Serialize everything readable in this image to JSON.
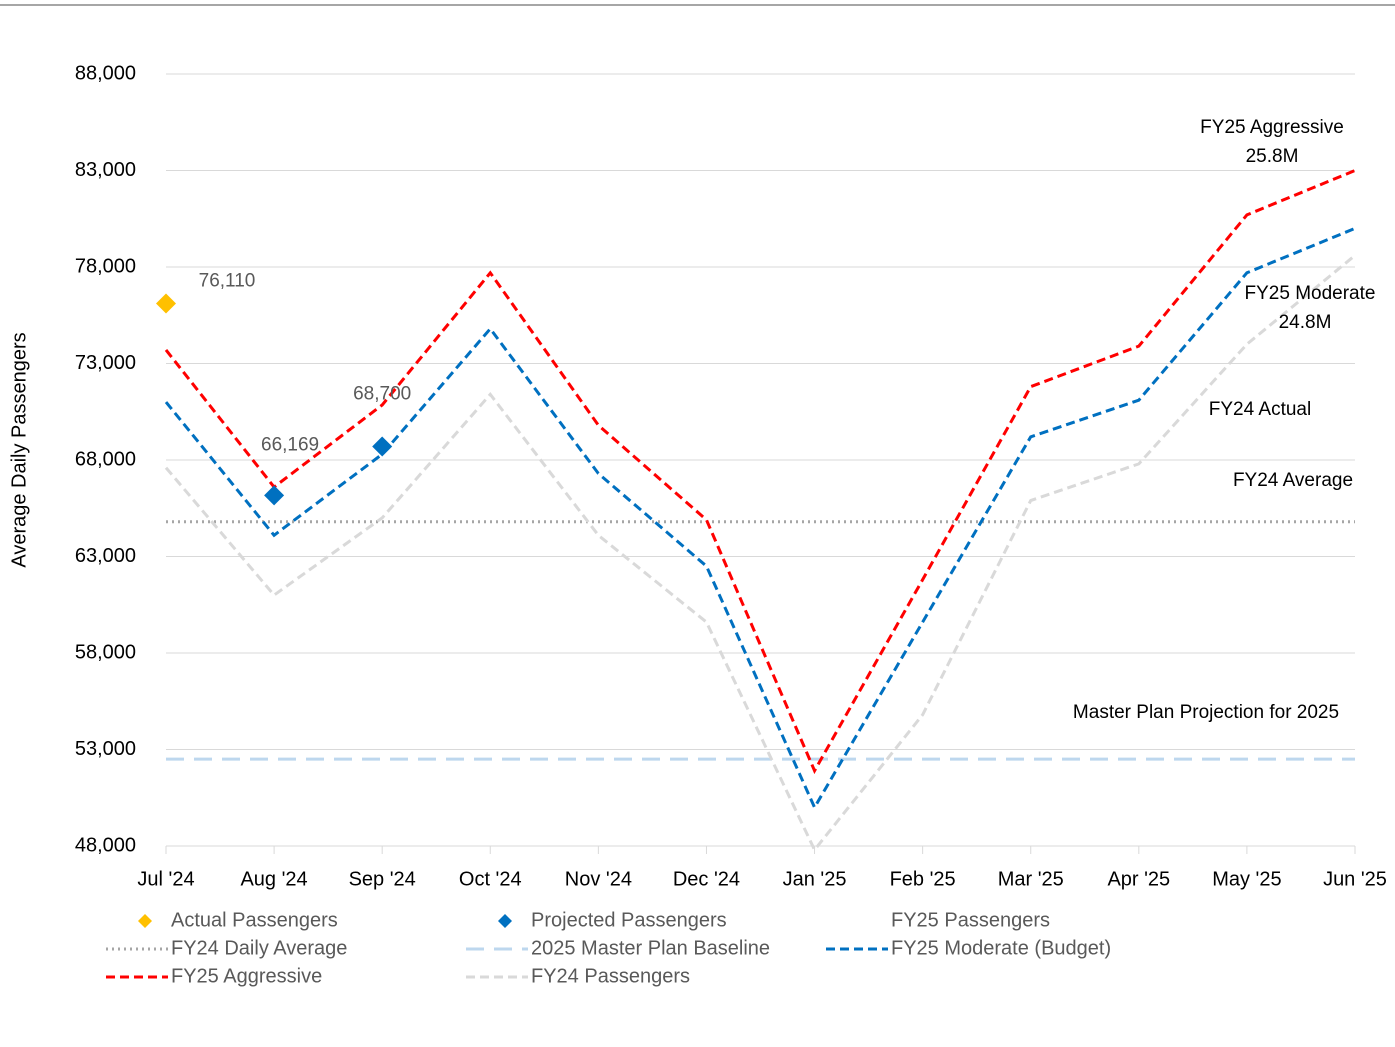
{
  "chart_data": {
    "type": "line",
    "y_label": "Average Daily Passengers",
    "categories": [
      "Jul '24",
      "Aug '24",
      "Sep '24",
      "Oct '24",
      "Nov '24",
      "Dec '24",
      "Jan '25",
      "Feb '25",
      "Mar '25",
      "Apr '25",
      "May '25",
      "Jun '25"
    ],
    "ylim": [
      48000,
      88000
    ],
    "yticks": [
      {
        "value": 48000,
        "label": "48,000"
      },
      {
        "value": 53000,
        "label": "53,000"
      },
      {
        "value": 58000,
        "label": "58,000"
      },
      {
        "value": 63000,
        "label": "63,000"
      },
      {
        "value": 68000,
        "label": "68,000"
      },
      {
        "value": 73000,
        "label": "73,000"
      },
      {
        "value": 78000,
        "label": "78,000"
      },
      {
        "value": 83000,
        "label": "83,000"
      },
      {
        "value": 88000,
        "label": "88,000"
      }
    ],
    "grid": true,
    "legend": "bottom",
    "series": [
      {
        "name": "Actual Passengers",
        "style": "diamond",
        "color": "#FFC000",
        "values": [
          76110,
          null,
          null,
          null,
          null,
          null,
          null,
          null,
          null,
          null,
          null,
          null
        ],
        "value_labels": [
          "76,110",
          null,
          null,
          null,
          null,
          null,
          null,
          null,
          null,
          null,
          null,
          null
        ]
      },
      {
        "name": "Projected Passengers",
        "style": "diamond",
        "color": "#0070C0",
        "values": [
          null,
          66169,
          68700,
          null,
          null,
          null,
          null,
          null,
          null,
          null,
          null,
          null
        ],
        "value_labels": [
          null,
          "66,169",
          "68,700",
          null,
          null,
          null,
          null,
          null,
          null,
          null,
          null,
          null
        ]
      },
      {
        "name": "FY25 Passengers",
        "style": "none",
        "color": "#7F7F7F",
        "values": [
          null,
          null,
          null,
          null,
          null,
          null,
          null,
          null,
          null,
          null,
          null,
          null
        ]
      },
      {
        "name": "FY24 Daily Average",
        "style": "dotted",
        "color": "#A6A6A6",
        "values": [
          64800,
          64800,
          64800,
          64800,
          64800,
          64800,
          64800,
          64800,
          64800,
          64800,
          64800,
          64800
        ]
      },
      {
        "name": "2025 Master Plan Baseline",
        "style": "longdash",
        "color": "#BDD7EE",
        "values": [
          52500,
          52500,
          52500,
          52500,
          52500,
          52500,
          52500,
          52500,
          52500,
          52500,
          52500,
          52500
        ]
      },
      {
        "name": "FY25 Moderate (Budget)",
        "style": "dashed",
        "color": "#0070C0",
        "values": [
          71000,
          64100,
          68300,
          74800,
          67300,
          62500,
          50000,
          59600,
          69200,
          71100,
          77700,
          80000
        ]
      },
      {
        "name": "FY25 Aggressive",
        "style": "dashed",
        "color": "#FF0000",
        "values": [
          73700,
          66600,
          70850,
          77700,
          69800,
          64900,
          51900,
          61800,
          71800,
          73900,
          80700,
          83000
        ]
      },
      {
        "name": "FY24 Passengers",
        "style": "dashed",
        "color": "#D9D9D9",
        "values": [
          67600,
          61000,
          65000,
          71400,
          64100,
          59600,
          47800,
          54800,
          65900,
          67800,
          74000,
          78600
        ]
      }
    ],
    "annotations": [
      "FY25 Aggressive",
      "25.8M",
      "FY25 Moderate",
      "24.8M",
      "FY24 Actual",
      "FY24 Average",
      "Master Plan Projection for 2025"
    ]
  }
}
